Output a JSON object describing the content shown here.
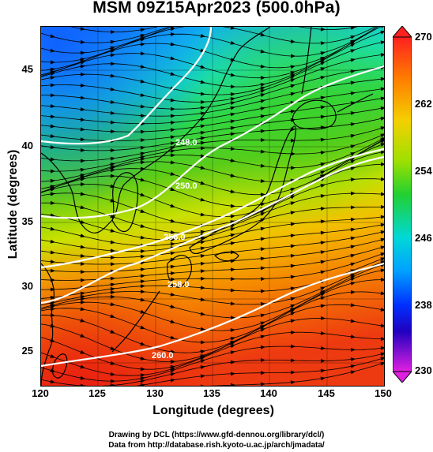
{
  "title": "MSM 09Z15Apr2023 (500.0hPa)",
  "axes": {
    "xlabel": "Longitude (degrees)",
    "ylabel": "Latitude  (degrees)",
    "xticks": [
      "120",
      "125",
      "130",
      "135",
      "140",
      "145",
      "150"
    ],
    "yticks": [
      "45",
      "40",
      "35",
      "30",
      "25"
    ]
  },
  "colorbar": {
    "ticks": [
      "270",
      "262",
      "254",
      "246",
      "238",
      "230"
    ],
    "min": 230,
    "max": 270
  },
  "contours": [
    {
      "label": "248.0"
    },
    {
      "label": "250.0"
    },
    {
      "label": "256.0"
    },
    {
      "label": "258.0"
    },
    {
      "label": "260.0"
    }
  ],
  "credits": {
    "line1": "Drawing by DCL (https://www.gfd-dennou.org/library/dcl/)",
    "line2": "Data from http://database.rish.kyoto-u.ac.jp/arch/jmadata/"
  },
  "colors": {
    "cold": "#1a6bff",
    "cyan": "#00d8e8",
    "green": "#22d02a",
    "yellow": "#d6e800",
    "orange": "#f07a00",
    "red": "#ee2a10"
  }
}
